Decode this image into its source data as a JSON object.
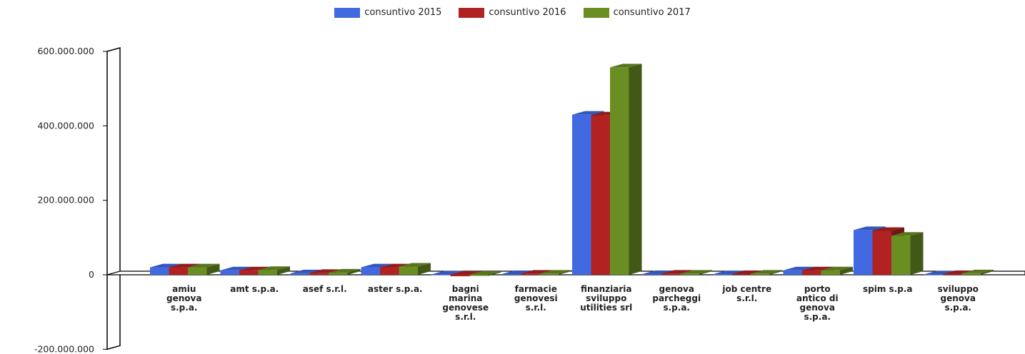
{
  "chart_data": {
    "type": "bar",
    "categories": [
      "amiu genova s.p.a.",
      "amt s.p.a.",
      "asef s.r.l.",
      "aster s.p.a.",
      "bagni marina genovese s.r.l.",
      "farmacie genovesi s.r.l.",
      "finanziaria sviluppo utilities srl",
      "genova parcheggi s.p.a.",
      "job centre s.r.l.",
      "porto antico di genova s.p.a.",
      "spim s.p.a",
      "sviluppo genova s.p.a."
    ],
    "category_lines": [
      [
        "amiu",
        "genova",
        "s.p.a."
      ],
      [
        "amt s.p.a."
      ],
      [
        "asef s.r.l."
      ],
      [
        "aster s.p.a."
      ],
      [
        "bagni",
        "marina",
        "genovese",
        "s.r.l."
      ],
      [
        "farmacie",
        "genovesi",
        "s.r.l."
      ],
      [
        "finanziaria",
        "sviluppo",
        "utilities srl"
      ],
      [
        "genova",
        "parcheggi",
        "s.p.a."
      ],
      [
        "job centre",
        "s.r.l."
      ],
      [
        "porto",
        "antico di",
        "genova",
        "s.p.a."
      ],
      [
        "spim s.p.a"
      ],
      [
        "sviluppo",
        "genova",
        "s.p.a."
      ]
    ],
    "series": [
      {
        "name": "consuntivo 2015",
        "color": "#4169E1",
        "values": [
          20000000,
          12000000,
          4000000,
          20000000,
          1000000,
          2000000,
          430000000,
          2000000,
          1500000,
          12000000,
          120000000,
          1000000
        ]
      },
      {
        "name": "consuntivo 2016",
        "color": "#B22222",
        "values": [
          20000000,
          12000000,
          5000000,
          20000000,
          -4000000,
          3000000,
          428000000,
          3000000,
          2000000,
          12000000,
          118000000,
          2000000
        ]
      },
      {
        "name": "consuntivo 2017",
        "color": "#6B8E23",
        "values": [
          20000000,
          13000000,
          6000000,
          22000000,
          -3000000,
          3000000,
          557000000,
          3000000,
          3000000,
          12000000,
          105000000,
          4000000
        ]
      }
    ],
    "yticks": [
      600000000,
      400000000,
      200000000,
      0,
      -200000000
    ],
    "ytick_labels": [
      "600.000.000",
      "400.000.000",
      "200.000.000",
      "0",
      "-200.000.000"
    ],
    "ylim": [
      -200000000,
      600000000
    ],
    "legend_position": "top-center",
    "style": "3d-clustered-bar"
  }
}
